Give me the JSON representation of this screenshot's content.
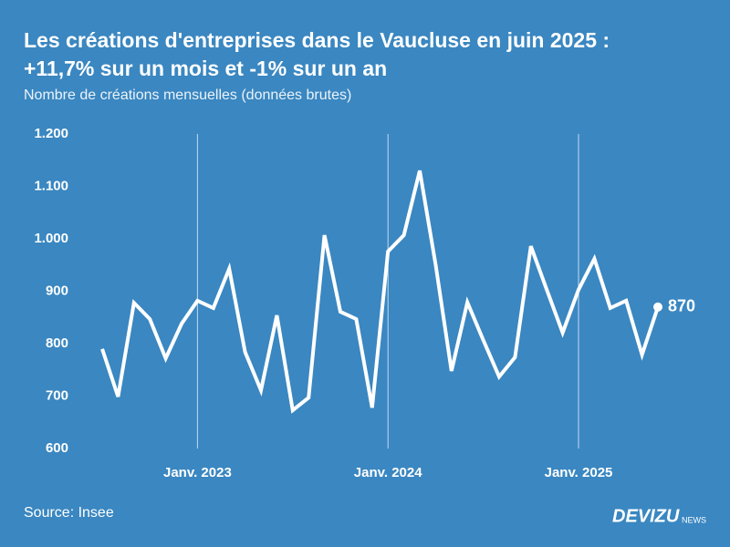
{
  "chart_data": {
    "type": "line",
    "title": [
      "Les créations d'entreprises dans le Vaucluse en juin 2025 :",
      "+11,7% sur un mois et -1% sur un an"
    ],
    "subtitle": "Nombre de créations mensuelles (données brutes)",
    "source": "Source: Insee",
    "brand": "DEVIZU",
    "brand_suffix": "NEWS",
    "categories": [
      null,
      null,
      null,
      null,
      null,
      null,
      "Janv. 2023",
      null,
      null,
      null,
      null,
      null,
      null,
      null,
      null,
      null,
      null,
      null,
      "Janv. 2024",
      null,
      null,
      null,
      null,
      null,
      null,
      null,
      null,
      null,
      null,
      null,
      "Janv. 2025",
      null,
      null,
      null,
      null,
      null
    ],
    "values": [
      790,
      699,
      878,
      847,
      772,
      838,
      882,
      868,
      943,
      784,
      711,
      854,
      673,
      697,
      1007,
      861,
      847,
      678,
      976,
      1007,
      1130,
      951,
      748,
      879,
      807,
      737,
      774,
      986,
      903,
      821,
      903,
      962,
      868,
      882,
      779,
      870
    ],
    "color": "#ffffff",
    "ylim": [
      600,
      1200
    ],
    "yticks": [
      600,
      700,
      800,
      900,
      {
        "value": 1000,
        "label": "1.000"
      },
      {
        "value": 1100,
        "label": "1.100"
      },
      {
        "value": 1200,
        "label": "1.200"
      }
    ],
    "grid": "x",
    "end_label": true
  }
}
